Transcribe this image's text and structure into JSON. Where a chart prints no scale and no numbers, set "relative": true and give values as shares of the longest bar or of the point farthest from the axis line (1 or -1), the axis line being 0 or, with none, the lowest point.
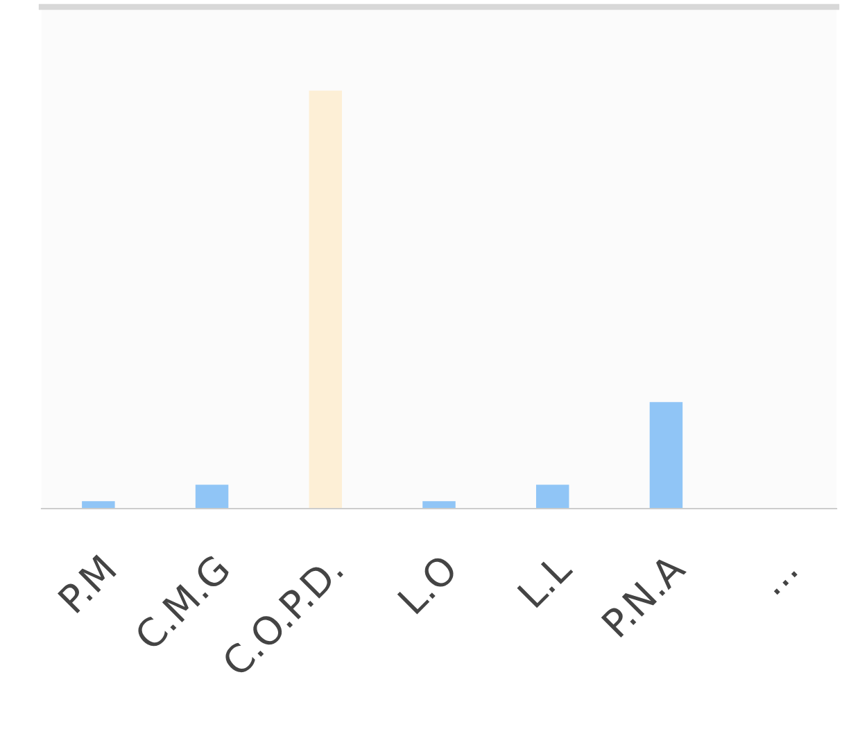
{
  "chart_data": {
    "type": "bar",
    "relative": true,
    "categories": [
      "P.M",
      "C.M.G",
      "C.O.P.D.",
      "L.O",
      "L.L",
      "P.N.A",
      "..."
    ],
    "values": [
      0.018,
      0.057,
      1,
      0.018,
      0.057,
      0.255,
      null
    ],
    "colors": [
      "#90c5f6",
      "#90c5f6",
      "#fdefd6",
      "#90c5f6",
      "#90c5f6",
      "#90c5f6",
      "#90c5f6"
    ],
    "grid": false,
    "legend": false
  }
}
